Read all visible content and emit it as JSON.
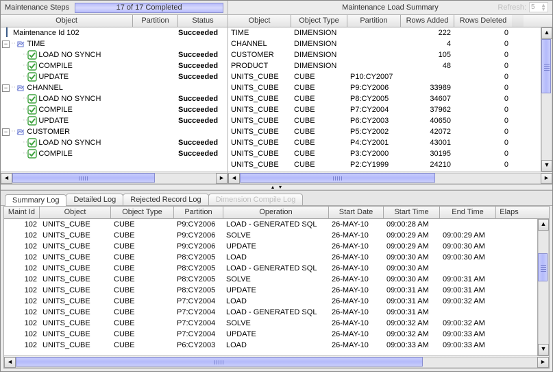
{
  "colors": {
    "accent": "#b4bafb",
    "accent_border": "#8a8fd0",
    "header_bg1": "#f8f8f8",
    "header_bg2": "#e4e4e4",
    "border": "#aaaaaa",
    "text": "#000000",
    "disabled_text": "#bfbfbf",
    "success_check": "#3fa33f"
  },
  "steps": {
    "title": "Maintenance Steps",
    "progress_text": "17 of 17 Completed",
    "columns": {
      "object": "Object",
      "partition": "Partition",
      "status": "Status"
    },
    "root": {
      "label": "Maintenance Id 102",
      "status": "Succeeded"
    },
    "groups": [
      {
        "label": "TIME",
        "children": [
          {
            "label": "LOAD NO SYNCH",
            "status": "Succeeded"
          },
          {
            "label": "COMPILE",
            "status": "Succeeded"
          },
          {
            "label": "UPDATE",
            "status": "Succeeded"
          }
        ]
      },
      {
        "label": "CHANNEL",
        "children": [
          {
            "label": "LOAD NO SYNCH",
            "status": "Succeeded"
          },
          {
            "label": "COMPILE",
            "status": "Succeeded"
          },
          {
            "label": "UPDATE",
            "status": "Succeeded"
          }
        ]
      },
      {
        "label": "CUSTOMER",
        "children": [
          {
            "label": "LOAD NO SYNCH",
            "status": "Succeeded"
          },
          {
            "label": "COMPILE",
            "status": "Succeeded"
          }
        ]
      }
    ]
  },
  "summary": {
    "title": "Maintenance Load Summary",
    "refresh_label": "Refresh:",
    "refresh_value": "5",
    "columns": {
      "object": "Object",
      "type": "Object Type",
      "partition": "Partition",
      "added": "Rows Added",
      "deleted": "Rows Deleted"
    },
    "rows": [
      {
        "object": "TIME",
        "type": "DIMENSION",
        "partition": "",
        "added": "222",
        "deleted": "0"
      },
      {
        "object": "CHANNEL",
        "type": "DIMENSION",
        "partition": "",
        "added": "4",
        "deleted": "0"
      },
      {
        "object": "CUSTOMER",
        "type": "DIMENSION",
        "partition": "",
        "added": "105",
        "deleted": "0"
      },
      {
        "object": "PRODUCT",
        "type": "DIMENSION",
        "partition": "",
        "added": "48",
        "deleted": "0"
      },
      {
        "object": "UNITS_CUBE",
        "type": "CUBE",
        "partition": "P10:CY2007",
        "added": "",
        "deleted": "0"
      },
      {
        "object": "UNITS_CUBE",
        "type": "CUBE",
        "partition": "P9:CY2006",
        "added": "33989",
        "deleted": "0"
      },
      {
        "object": "UNITS_CUBE",
        "type": "CUBE",
        "partition": "P8:CY2005",
        "added": "34607",
        "deleted": "0"
      },
      {
        "object": "UNITS_CUBE",
        "type": "CUBE",
        "partition": "P7:CY2004",
        "added": "37962",
        "deleted": "0"
      },
      {
        "object": "UNITS_CUBE",
        "type": "CUBE",
        "partition": "P6:CY2003",
        "added": "40650",
        "deleted": "0"
      },
      {
        "object": "UNITS_CUBE",
        "type": "CUBE",
        "partition": "P5:CY2002",
        "added": "42072",
        "deleted": "0"
      },
      {
        "object": "UNITS_CUBE",
        "type": "CUBE",
        "partition": "P4:CY2001",
        "added": "43001",
        "deleted": "0"
      },
      {
        "object": "UNITS_CUBE",
        "type": "CUBE",
        "partition": "P3:CY2000",
        "added": "30195",
        "deleted": "0"
      },
      {
        "object": "UNITS_CUBE",
        "type": "CUBE",
        "partition": "P2:CY1999",
        "added": "24210",
        "deleted": "0"
      }
    ]
  },
  "tabs": {
    "items": [
      {
        "label": "Summary Log",
        "active": true,
        "disabled": false
      },
      {
        "label": "Detailed Log",
        "active": false,
        "disabled": false
      },
      {
        "label": "Rejected Record Log",
        "active": false,
        "disabled": false
      },
      {
        "label": "Dimension Compile Log",
        "active": false,
        "disabled": true
      }
    ]
  },
  "log": {
    "columns": {
      "id": "Maint Id",
      "object": "Object",
      "type": "Object Type",
      "partition": "Partition",
      "operation": "Operation",
      "sd": "Start Date",
      "st": "Start Time",
      "et": "End Time",
      "el": "Elaps"
    },
    "rows": [
      {
        "id": "102",
        "object": "UNITS_CUBE",
        "type": "CUBE",
        "partition": "P9:CY2006",
        "op": " LOAD - GENERATED SQL",
        "sd": "26-MAY-10",
        "st": "09:00:28 AM",
        "et": ""
      },
      {
        "id": "102",
        "object": "UNITS_CUBE",
        "type": "CUBE",
        "partition": "P9:CY2006",
        "op": "SOLVE",
        "sd": "26-MAY-10",
        "st": "09:00:29 AM",
        "et": "09:00:29 AM"
      },
      {
        "id": "102",
        "object": "UNITS_CUBE",
        "type": "CUBE",
        "partition": "P9:CY2006",
        "op": "UPDATE",
        "sd": "26-MAY-10",
        "st": "09:00:29 AM",
        "et": "09:00:30 AM"
      },
      {
        "id": "102",
        "object": "UNITS_CUBE",
        "type": "CUBE",
        "partition": "P8:CY2005",
        "op": "LOAD",
        "sd": "26-MAY-10",
        "st": "09:00:30 AM",
        "et": "09:00:30 AM"
      },
      {
        "id": "102",
        "object": "UNITS_CUBE",
        "type": "CUBE",
        "partition": "P8:CY2005",
        "op": " LOAD - GENERATED SQL",
        "sd": "26-MAY-10",
        "st": "09:00:30 AM",
        "et": ""
      },
      {
        "id": "102",
        "object": "UNITS_CUBE",
        "type": "CUBE",
        "partition": "P8:CY2005",
        "op": "SOLVE",
        "sd": "26-MAY-10",
        "st": "09:00:30 AM",
        "et": "09:00:31 AM"
      },
      {
        "id": "102",
        "object": "UNITS_CUBE",
        "type": "CUBE",
        "partition": "P8:CY2005",
        "op": "UPDATE",
        "sd": "26-MAY-10",
        "st": "09:00:31 AM",
        "et": "09:00:31 AM"
      },
      {
        "id": "102",
        "object": "UNITS_CUBE",
        "type": "CUBE",
        "partition": "P7:CY2004",
        "op": "LOAD",
        "sd": "26-MAY-10",
        "st": "09:00:31 AM",
        "et": "09:00:32 AM"
      },
      {
        "id": "102",
        "object": "UNITS_CUBE",
        "type": "CUBE",
        "partition": "P7:CY2004",
        "op": " LOAD - GENERATED SQL",
        "sd": "26-MAY-10",
        "st": "09:00:31 AM",
        "et": ""
      },
      {
        "id": "102",
        "object": "UNITS_CUBE",
        "type": "CUBE",
        "partition": "P7:CY2004",
        "op": "SOLVE",
        "sd": "26-MAY-10",
        "st": "09:00:32 AM",
        "et": "09:00:32 AM"
      },
      {
        "id": "102",
        "object": "UNITS_CUBE",
        "type": "CUBE",
        "partition": "P7:CY2004",
        "op": "UPDATE",
        "sd": "26-MAY-10",
        "st": "09:00:32 AM",
        "et": "09:00:33 AM"
      },
      {
        "id": "102",
        "object": "UNITS_CUBE",
        "type": "CUBE",
        "partition": "P6:CY2003",
        "op": "LOAD",
        "sd": "26-MAY-10",
        "st": "09:00:33 AM",
        "et": "09:00:33 AM"
      }
    ]
  }
}
